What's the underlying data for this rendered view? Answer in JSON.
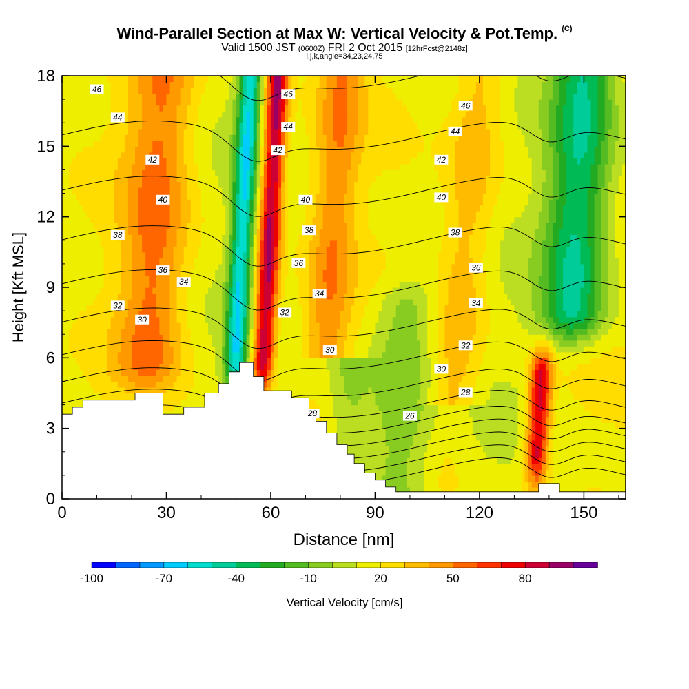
{
  "title": {
    "main": "Wind-Parallel Section at Max W: Vertical Velocity & Pot.Temp.",
    "copyright": "(C)",
    "valid": "Valid 1500 JST",
    "valid_z": "(0600Z)",
    "valid_date": "FRI 2 Oct 2015",
    "forecast": "[12hrFcst@2148z]",
    "indices": "i,j,k,angle=34,23,24,75"
  },
  "chart_data": {
    "type": "heatmap",
    "xlabel": "Distance [nm]",
    "ylabel": "Height [Kft MSL]",
    "xlim": [
      0,
      162
    ],
    "ylim": [
      0,
      18
    ],
    "x_ticks": [
      "0",
      "30",
      "60",
      "90",
      "120",
      "150"
    ],
    "y_ticks": [
      "0",
      "3",
      "6",
      "9",
      "12",
      "15",
      "18"
    ],
    "colorbar": {
      "label": "Vertical Velocity [cm/s]",
      "tick_labels": [
        "-100",
        "-70",
        "-40",
        "-10",
        "20",
        "50",
        "80"
      ],
      "colors": [
        "#0000ff",
        "#0066ff",
        "#0099ff",
        "#00ccff",
        "#00ddcc",
        "#00cc99",
        "#00bb55",
        "#22aa22",
        "#55bb22",
        "#88cc22",
        "#bbdd22",
        "#eeee00",
        "#ffdd00",
        "#ffbb00",
        "#ff9900",
        "#ff6600",
        "#ff3300",
        "#ee0000",
        "#cc0033",
        "#990066",
        "#660099"
      ]
    },
    "vertical_velocity_bands": [
      {
        "x_center": 60,
        "peak": 80,
        "top": 18,
        "bottom": 6
      },
      {
        "x_center": 52,
        "peak": -70,
        "top": 18,
        "bottom": 6
      },
      {
        "x_center": 140,
        "peak": 70,
        "top": 5,
        "bottom": 2
      },
      {
        "x_center": 148,
        "peak": -60,
        "top": 18,
        "bottom": 8
      },
      {
        "x_center": 27,
        "peak": 35,
        "top": 18,
        "bottom": 6
      },
      {
        "x_center": 100,
        "peak": -25,
        "top": 8,
        "bottom": 0
      }
    ],
    "potential_temperature_labels": [
      {
        "value": "46",
        "x": 10,
        "y": 17.4
      },
      {
        "value": "44",
        "x": 16,
        "y": 16.2
      },
      {
        "value": "42",
        "x": 26,
        "y": 14.4
      },
      {
        "value": "40",
        "x": 29,
        "y": 12.7
      },
      {
        "value": "38",
        "x": 16,
        "y": 11.2
      },
      {
        "value": "36",
        "x": 29,
        "y": 9.7
      },
      {
        "value": "34",
        "x": 35,
        "y": 9.2
      },
      {
        "value": "32",
        "x": 16,
        "y": 8.2
      },
      {
        "value": "30",
        "x": 23,
        "y": 7.6
      },
      {
        "value": "46",
        "x": 65,
        "y": 17.2
      },
      {
        "value": "44",
        "x": 65,
        "y": 15.8
      },
      {
        "value": "42",
        "x": 62,
        "y": 14.8
      },
      {
        "value": "40",
        "x": 70,
        "y": 12.7
      },
      {
        "value": "38",
        "x": 71,
        "y": 11.4
      },
      {
        "value": "36",
        "x": 68,
        "y": 10.0
      },
      {
        "value": "34",
        "x": 74,
        "y": 8.7
      },
      {
        "value": "32",
        "x": 64,
        "y": 7.9
      },
      {
        "value": "30",
        "x": 77,
        "y": 6.3
      },
      {
        "value": "28",
        "x": 72,
        "y": 3.6
      },
      {
        "value": "26",
        "x": 100,
        "y": 3.5
      },
      {
        "value": "46",
        "x": 116,
        "y": 16.7
      },
      {
        "value": "44",
        "x": 113,
        "y": 15.6
      },
      {
        "value": "42",
        "x": 109,
        "y": 14.4
      },
      {
        "value": "40",
        "x": 109,
        "y": 12.8
      },
      {
        "value": "38",
        "x": 113,
        "y": 11.3
      },
      {
        "value": "36",
        "x": 119,
        "y": 9.8
      },
      {
        "value": "34",
        "x": 119,
        "y": 8.3
      },
      {
        "value": "32",
        "x": 116,
        "y": 6.5
      },
      {
        "value": "30",
        "x": 109,
        "y": 5.5
      },
      {
        "value": "28",
        "x": 116,
        "y": 4.5
      }
    ]
  }
}
